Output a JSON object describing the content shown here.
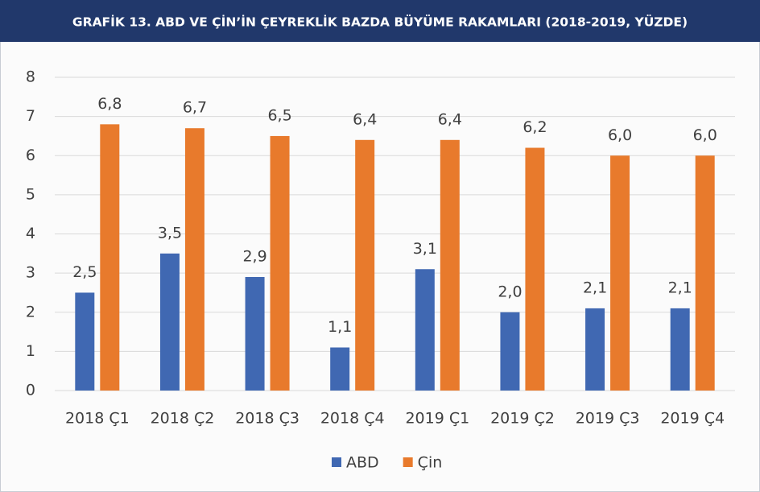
{
  "chart_data": {
    "type": "bar",
    "title": "GRAFİK 13. ABD VE ÇİN’İN ÇEYREKLİK BAZDA BÜYÜME RAKAMLARI (2018-2019, YÜZDE)",
    "categories": [
      "2018 Ç1",
      "2018 Ç2",
      "2018 Ç3",
      "2018 Ç4",
      "2019 Ç1",
      "2019 Ç2",
      "2019 Ç3",
      "2019 Ç4"
    ],
    "series": [
      {
        "name": "ABD",
        "color": "#4068b2",
        "values": [
          2.5,
          3.5,
          2.9,
          1.1,
          3.1,
          2.0,
          2.1,
          2.1
        ],
        "value_labels": [
          "2,5",
          "3,5",
          "2,9",
          "1,1",
          "3,1",
          "2,0",
          "2,1",
          "2,1"
        ]
      },
      {
        "name": "Çin",
        "color": "#e87a2c",
        "values": [
          6.8,
          6.7,
          6.5,
          6.4,
          6.4,
          6.2,
          6.0,
          6.0
        ],
        "value_labels": [
          "6,8",
          "6,7",
          "6,5",
          "6,4",
          "6,4",
          "6,2",
          "6,0",
          "6,0"
        ]
      }
    ],
    "ylim": [
      0,
      8
    ],
    "yticks": [
      0,
      1,
      2,
      3,
      4,
      5,
      6,
      7,
      8
    ],
    "grid": true,
    "legend": "bottom"
  }
}
